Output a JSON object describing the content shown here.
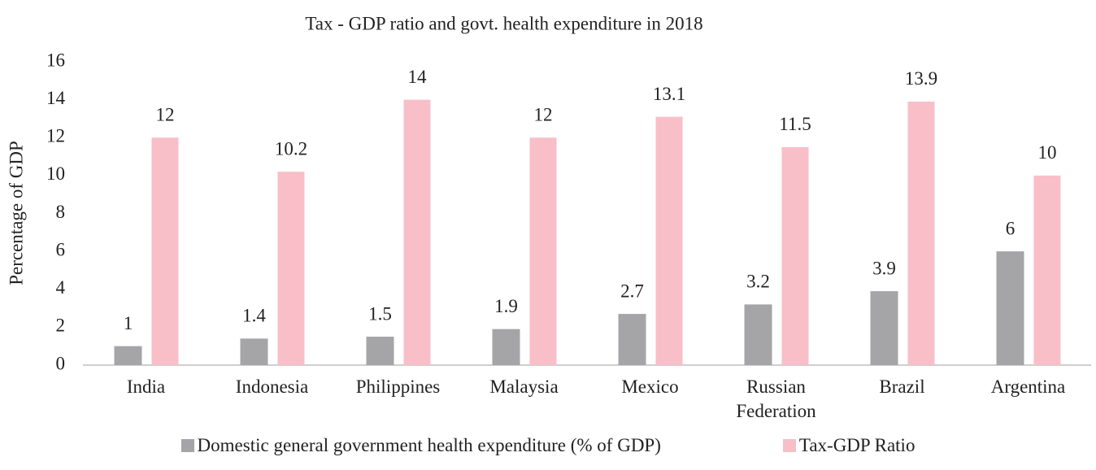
{
  "chart_data": {
    "type": "bar",
    "title": "Tax - GDP ratio and govt. health expenditure in 2018",
    "y_label": "Percentage of GDP",
    "categories": [
      "India",
      "Indonesia",
      "Philippines",
      "Malaysia",
      "Mexico",
      "Russian Federation",
      "Brazil",
      "Argentina"
    ],
    "series": [
      {
        "name": "Domestic general government health expenditure (% of GDP)",
        "color": "#a5a5a7",
        "values": [
          1,
          1.4,
          1.5,
          1.9,
          2.7,
          3.2,
          3.9,
          6
        ]
      },
      {
        "name": "Tax-GDP Ratio",
        "color": "#f8bfc8",
        "values": [
          12,
          10.2,
          14,
          12,
          13.1,
          11.5,
          13.9,
          10
        ]
      }
    ],
    "ylim": [
      0,
      16
    ],
    "yticks": [
      0,
      2,
      4,
      6,
      8,
      10,
      12,
      14,
      16
    ],
    "grid": false,
    "legend": "bottom"
  }
}
